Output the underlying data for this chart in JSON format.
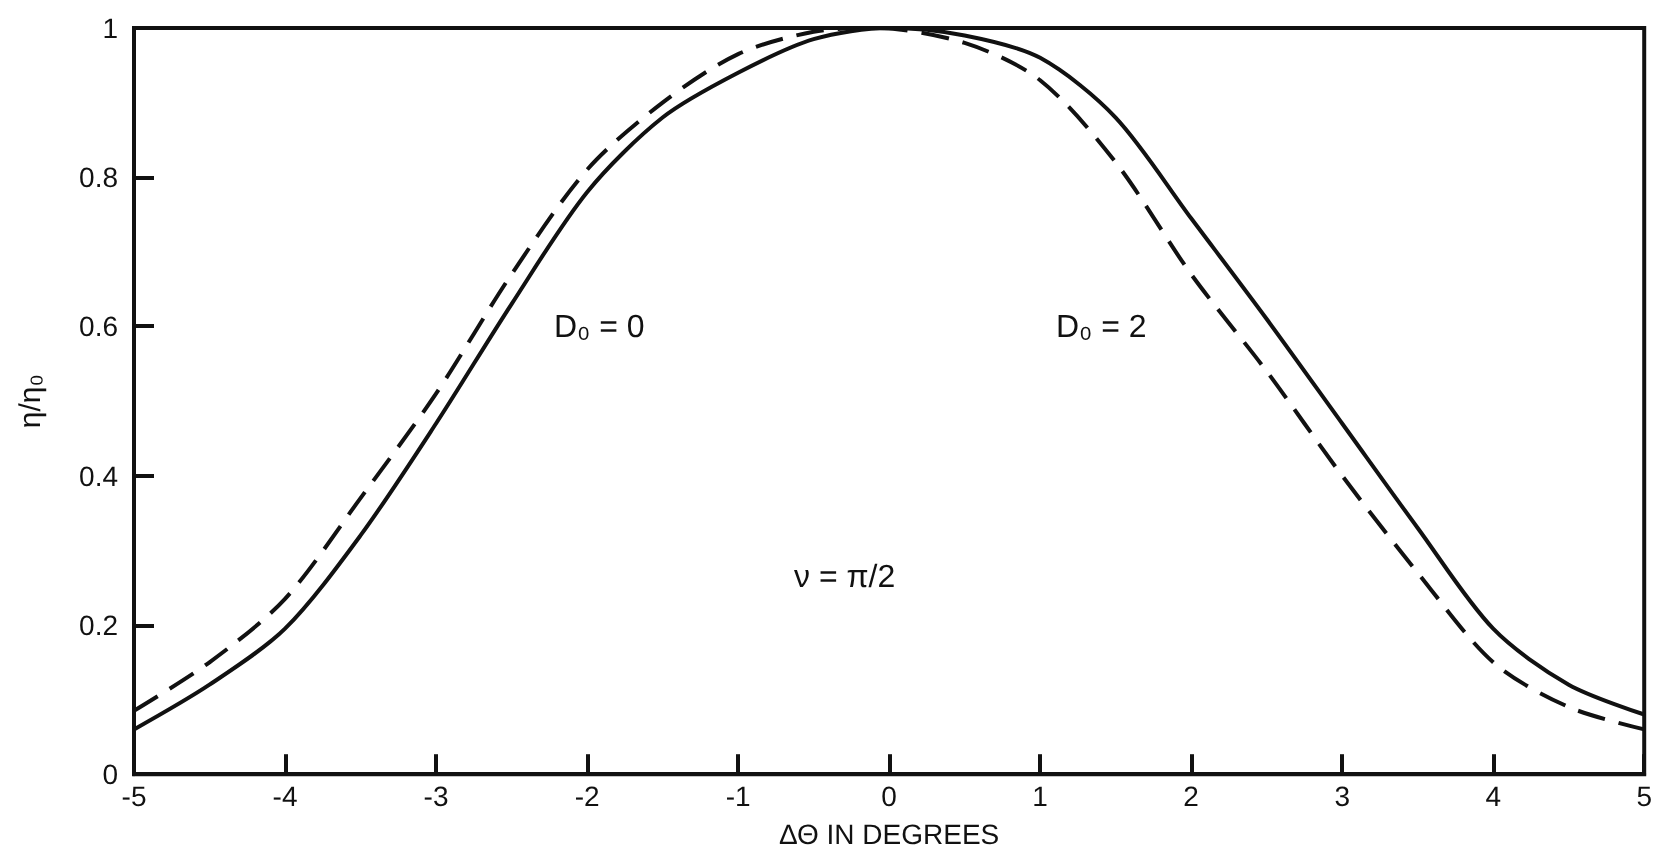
{
  "chart_data": {
    "type": "line",
    "xlabel": "ΔΘ IN DEGREES",
    "ylabel": "η/η₀",
    "xlim": [
      -5,
      5
    ],
    "xticks": [
      -5,
      -4,
      -3,
      -2,
      -1,
      0,
      1,
      2,
      3,
      4,
      5
    ],
    "ylim": [
      0,
      1
    ],
    "yticks": [
      0,
      0.2,
      0.4,
      0.6,
      0.8,
      1.0
    ],
    "grid": false,
    "marker": "none",
    "series": [
      {
        "color": "#111111",
        "line_style": "dashed",
        "x": [
          -5,
          -4.5,
          -4,
          -3.5,
          -3,
          -2.5,
          -2,
          -1.5,
          -1,
          -0.5,
          -0.1,
          0.5,
          1,
          1.5,
          2,
          2.5,
          3,
          3.5,
          4,
          4.5,
          5
        ],
        "values": [
          0.085,
          0.15,
          0.235,
          0.37,
          0.51,
          0.67,
          0.81,
          0.9,
          0.965,
          0.995,
          1.0,
          0.98,
          0.93,
          0.82,
          0.67,
          0.54,
          0.4,
          0.27,
          0.15,
          0.09,
          0.06
        ]
      },
      {
        "color": "#111111",
        "line_style": "solid",
        "x": [
          -5,
          -4.5,
          -4,
          -3.5,
          -3,
          -2.5,
          -2,
          -1.5,
          -1,
          -0.5,
          0,
          0.5,
          1,
          1.5,
          2,
          2.5,
          3,
          3.5,
          4,
          4.5,
          5
        ],
        "values": [
          0.06,
          0.12,
          0.195,
          0.32,
          0.47,
          0.63,
          0.78,
          0.88,
          0.94,
          0.985,
          1.0,
          0.99,
          0.96,
          0.88,
          0.745,
          0.61,
          0.47,
          0.33,
          0.195,
          0.12,
          0.08
        ]
      }
    ],
    "annotations": [
      "D₀ = 0",
      "D₀ = 2",
      "ν = π/2"
    ]
  }
}
